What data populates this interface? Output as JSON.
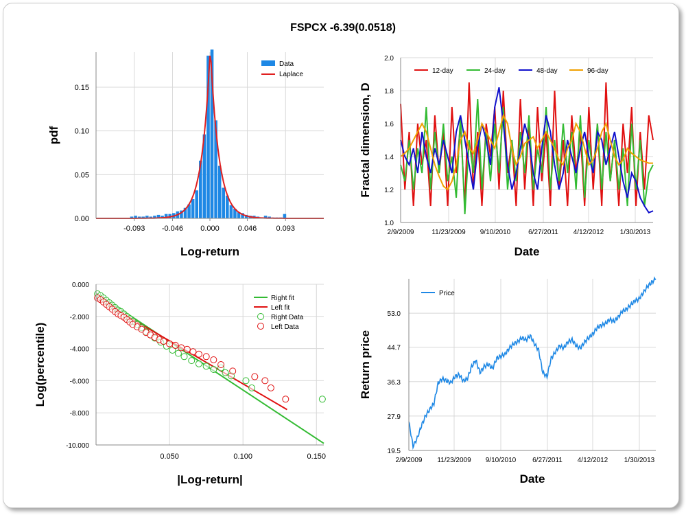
{
  "title": "FSPCX -6.39(0.0518)",
  "colors": {
    "bar": "#1e88e5",
    "laplace": "#e02020",
    "d12": "#e01010",
    "d24": "#33bb33",
    "d48": "#1010cc",
    "d96": "#f0a000",
    "price": "#1e88e5",
    "rightfit": "#33bb33",
    "leftfit": "#e01010",
    "grid": "#d8d8d8"
  },
  "chart_data": [
    {
      "type": "bar",
      "xlabel": "Log-return",
      "ylabel": "pdf",
      "xlim": [
        -0.14,
        0.14
      ],
      "ylim": [
        0,
        0.19
      ],
      "xticks": [
        "-0.093",
        "-0.046",
        "0.000",
        "0.046",
        "0.093"
      ],
      "yticks": [
        "0.00",
        "0.05",
        "0.10",
        "0.15"
      ],
      "legend": [
        "Data",
        "Laplace"
      ],
      "bin_width": 0.0047,
      "bins": [
        -0.0985,
        -0.0938,
        -0.0891,
        -0.0844,
        -0.0797,
        -0.075,
        -0.0703,
        -0.0656,
        -0.0609,
        -0.0562,
        -0.0515,
        -0.0468,
        -0.0421,
        -0.0374,
        -0.0327,
        -0.028,
        -0.0233,
        -0.0186,
        -0.0139,
        -0.0092,
        -0.0045,
        0.0002,
        0.0049,
        0.0096,
        0.0143,
        0.019,
        0.0237,
        0.0284,
        0.0331,
        0.0378,
        0.0425,
        0.0472,
        0.0519,
        0.0566,
        0.0613,
        0.066,
        0.0707,
        0.0754,
        0.0801,
        0.0848,
        0.0895
      ],
      "values": [
        0.002,
        0.003,
        0.002,
        0.002,
        0.003,
        0.002,
        0.003,
        0.004,
        0.003,
        0.005,
        0.005,
        0.006,
        0.008,
        0.009,
        0.012,
        0.016,
        0.022,
        0.032,
        0.066,
        0.096,
        0.186,
        0.193,
        0.112,
        0.06,
        0.035,
        0.026,
        0.015,
        0.011,
        0.007,
        0.006,
        0.004,
        0.003,
        0.003,
        0.002,
        0.001,
        0.003,
        0.002,
        0.001,
        0.001,
        0.001,
        0.005
      ]
    },
    {
      "type": "line",
      "xlabel": "Date",
      "ylabel": "Fractal dimension, D",
      "ylim": [
        1.0,
        2.0
      ],
      "xticks": [
        "2/9/2009",
        "11/23/2009",
        "9/10/2010",
        "6/27/2011",
        "4/12/2012",
        "1/30/2013"
      ],
      "yticks": [
        "1.0",
        "1.2",
        "1.4",
        "1.6",
        "1.8",
        "2.0"
      ],
      "series": [
        {
          "name": "12-day",
          "values": [
            1.72,
            1.2,
            1.55,
            1.1,
            1.6,
            1.35,
            1.5,
            1.1,
            1.65,
            1.3,
            1.55,
            1.1,
            1.7,
            1.3,
            1.6,
            1.1,
            1.85,
            1.2,
            1.55,
            1.1,
            1.6,
            1.4,
            1.7,
            1.2,
            1.8,
            1.3,
            1.5,
            1.1,
            1.75,
            1.2,
            1.6,
            1.1,
            1.7,
            1.25,
            1.55,
            1.1,
            1.8,
            1.2,
            1.5,
            1.1,
            1.65,
            1.3,
            1.55,
            1.1,
            1.7,
            1.2,
            1.6,
            1.1,
            1.85,
            1.25,
            1.5,
            1.1,
            1.6,
            1.3,
            1.7,
            1.1,
            1.55,
            1.2,
            1.65,
            1.5
          ]
        },
        {
          "name": "24-day",
          "values": [
            1.35,
            1.25,
            1.5,
            1.2,
            1.45,
            1.3,
            1.7,
            1.2,
            1.55,
            1.3,
            1.6,
            1.25,
            1.4,
            1.15,
            1.65,
            1.05,
            1.5,
            1.3,
            1.75,
            1.2,
            1.55,
            1.25,
            1.6,
            1.3,
            1.7,
            1.2,
            1.5,
            1.25,
            1.55,
            1.3,
            1.65,
            1.2,
            1.45,
            1.3,
            1.7,
            1.2,
            1.5,
            1.25,
            1.6,
            1.3,
            1.55,
            1.2,
            1.65,
            1.15,
            1.5,
            1.3,
            1.6,
            1.2,
            1.55,
            1.25,
            1.5,
            1.2,
            1.45,
            1.1,
            1.6,
            1.2,
            1.5,
            1.1,
            1.3,
            1.35
          ]
        },
        {
          "name": "48-day",
          "values": [
            1.5,
            1.4,
            1.35,
            1.45,
            1.3,
            1.55,
            1.4,
            1.3,
            1.45,
            1.35,
            1.5,
            1.4,
            1.3,
            1.55,
            1.65,
            1.5,
            1.35,
            1.2,
            1.45,
            1.6,
            1.5,
            1.35,
            1.7,
            1.82,
            1.6,
            1.35,
            1.2,
            1.3,
            1.45,
            1.6,
            1.5,
            1.3,
            1.2,
            1.45,
            1.65,
            1.55,
            1.35,
            1.2,
            1.3,
            1.5,
            1.4,
            1.3,
            1.45,
            1.55,
            1.4,
            1.3,
            1.55,
            1.5,
            1.35,
            1.45,
            1.55,
            1.4,
            1.25,
            1.15,
            1.3,
            1.25,
            1.15,
            1.1,
            1.06,
            1.07
          ]
        },
        {
          "name": "96-day",
          "values": [
            1.4,
            1.42,
            1.45,
            1.5,
            1.55,
            1.6,
            1.55,
            1.45,
            1.35,
            1.28,
            1.22,
            1.2,
            1.25,
            1.35,
            1.5,
            1.55,
            1.45,
            1.42,
            1.5,
            1.6,
            1.55,
            1.5,
            1.45,
            1.55,
            1.65,
            1.6,
            1.45,
            1.35,
            1.4,
            1.48,
            1.5,
            1.52,
            1.45,
            1.5,
            1.55,
            1.5,
            1.45,
            1.38,
            1.35,
            1.45,
            1.5,
            1.6,
            1.55,
            1.45,
            1.35,
            1.38,
            1.45,
            1.55,
            1.6,
            1.5,
            1.4,
            1.35,
            1.38,
            1.45,
            1.42,
            1.4,
            1.38,
            1.37,
            1.36,
            1.36
          ]
        }
      ]
    },
    {
      "type": "scatter",
      "xlabel": "|Log-return|",
      "ylabel": "Log(percentile)",
      "xlim": [
        0,
        0.155
      ],
      "ylim": [
        -10,
        0
      ],
      "xticks": [
        "0.050",
        "0.100",
        "0.150"
      ],
      "yticks": [
        "0.000",
        "-2.000",
        "-4.000",
        "-6.000",
        "-8.000",
        "-10.000"
      ],
      "series": [
        {
          "name": "Right fit",
          "kind": "line",
          "x": [
            0.0,
            0.155
          ],
          "y": [
            -0.55,
            -9.9
          ]
        },
        {
          "name": "Left fit",
          "kind": "line",
          "x": [
            0.0,
            0.13
          ],
          "y": [
            -0.85,
            -7.8
          ]
        },
        {
          "name": "Right Data",
          "kind": "points",
          "x": [
            0.001,
            0.003,
            0.005,
            0.007,
            0.009,
            0.011,
            0.013,
            0.015,
            0.017,
            0.019,
            0.021,
            0.023,
            0.025,
            0.028,
            0.031,
            0.034,
            0.037,
            0.04,
            0.044,
            0.048,
            0.052,
            0.056,
            0.06,
            0.065,
            0.07,
            0.075,
            0.08,
            0.085,
            0.088,
            0.092,
            0.102,
            0.106,
            0.154
          ],
          "y": [
            -0.6,
            -0.7,
            -0.85,
            -1.0,
            -1.15,
            -1.3,
            -1.45,
            -1.6,
            -1.7,
            -1.85,
            -2.0,
            -2.15,
            -2.3,
            -2.5,
            -2.7,
            -2.95,
            -3.15,
            -3.35,
            -3.6,
            -3.85,
            -4.1,
            -4.3,
            -4.5,
            -4.75,
            -4.95,
            -5.1,
            -5.3,
            -5.2,
            -5.5,
            -5.7,
            -6.0,
            -6.45,
            -7.15
          ]
        },
        {
          "name": "Left Data",
          "kind": "points",
          "x": [
            0.001,
            0.003,
            0.005,
            0.007,
            0.009,
            0.011,
            0.013,
            0.015,
            0.017,
            0.019,
            0.021,
            0.023,
            0.025,
            0.028,
            0.031,
            0.034,
            0.037,
            0.04,
            0.043,
            0.046,
            0.05,
            0.054,
            0.058,
            0.062,
            0.066,
            0.07,
            0.075,
            0.08,
            0.085,
            0.093,
            0.108,
            0.115,
            0.119,
            0.129
          ],
          "y": [
            -0.85,
            -0.95,
            -1.1,
            -1.25,
            -1.4,
            -1.55,
            -1.7,
            -1.85,
            -1.95,
            -2.05,
            -2.2,
            -2.35,
            -2.5,
            -2.65,
            -2.8,
            -3.0,
            -3.15,
            -3.3,
            -3.45,
            -3.55,
            -3.7,
            -3.8,
            -3.95,
            -4.05,
            -4.2,
            -4.35,
            -4.5,
            -4.7,
            -5.0,
            -5.4,
            -5.75,
            -6.0,
            -6.45,
            -7.15
          ]
        }
      ]
    },
    {
      "type": "line",
      "xlabel": "Date",
      "ylabel": "Return price",
      "ylim": [
        19.5,
        61.4
      ],
      "xticks": [
        "2/9/2009",
        "11/23/2009",
        "9/10/2010",
        "6/27/2011",
        "4/12/2012",
        "1/30/2013"
      ],
      "yticks": [
        "19.5",
        "27.9",
        "36.3",
        "44.7",
        "53.0"
      ],
      "series": [
        {
          "name": "Price",
          "values": [
            26.5,
            20.5,
            22.5,
            25.5,
            28.0,
            29.5,
            31.0,
            36.0,
            37.0,
            36.5,
            36.0,
            37.5,
            38.0,
            36.5,
            37.0,
            40.0,
            41.5,
            38.5,
            40.0,
            40.5,
            39.5,
            42.0,
            42.5,
            43.0,
            44.5,
            45.5,
            46.0,
            47.0,
            46.5,
            47.5,
            45.5,
            44.0,
            38.5,
            37.5,
            42.0,
            43.5,
            45.0,
            44.5,
            46.0,
            46.5,
            45.0,
            44.5,
            46.0,
            47.0,
            48.0,
            49.5,
            50.0,
            50.5,
            51.5,
            51.0,
            52.0,
            53.5,
            54.0,
            55.0,
            56.0,
            56.5,
            58.0,
            59.5,
            60.5,
            61.4
          ]
        }
      ]
    }
  ],
  "legend_labels": {
    "hist": [
      "Data",
      "Laplace"
    ],
    "fractal": [
      "12-day",
      "24-day",
      "48-day",
      "96-day"
    ],
    "tail": [
      "Right fit",
      "Left fit",
      "Right Data",
      "Left Data"
    ],
    "price": [
      "Price"
    ]
  }
}
